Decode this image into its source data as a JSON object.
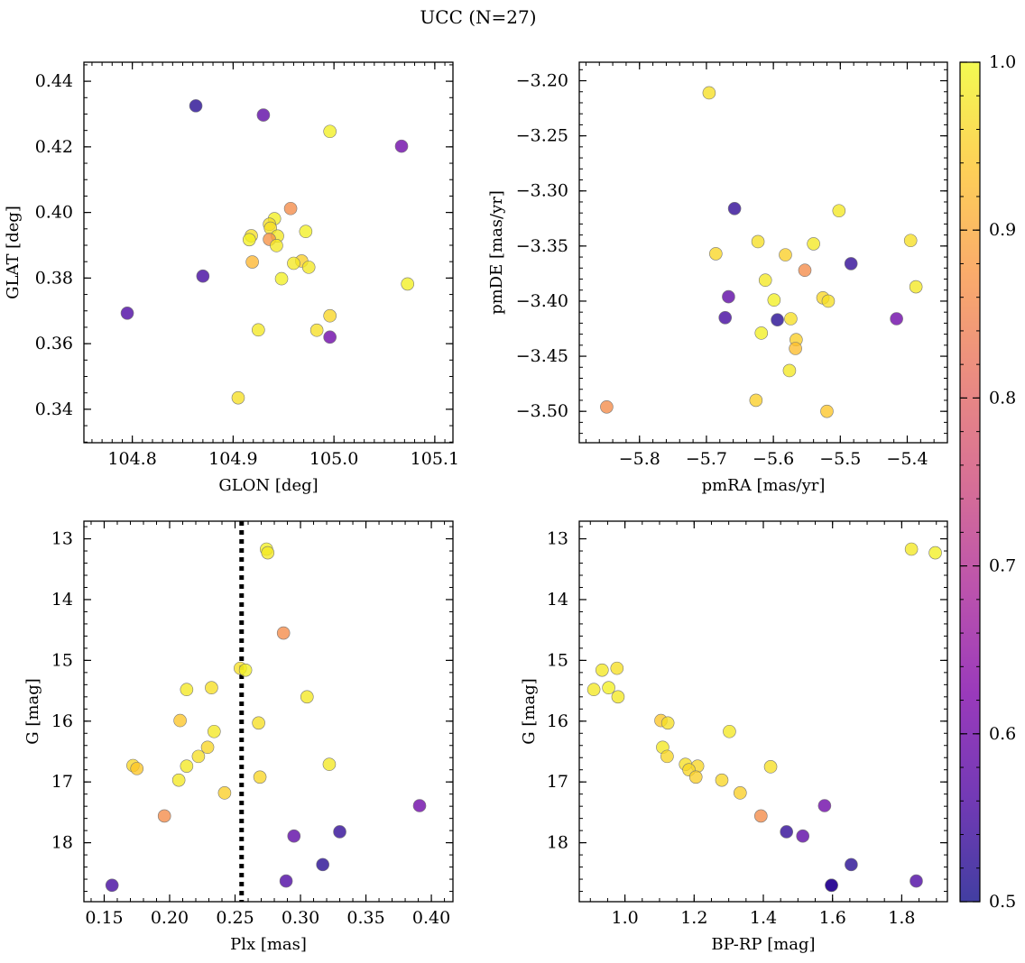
{
  "figure": {
    "title": "UCC (N=27)"
  },
  "colorbar": {
    "range": [
      0.5,
      1.0
    ],
    "ticks": [
      0.5,
      0.6,
      0.7,
      0.8,
      0.9,
      1.0
    ],
    "tick_labels": [
      "0.5",
      "0.6",
      "0.7",
      "0.8",
      "0.9",
      "1.0"
    ],
    "colormap": "plasma",
    "stops": [
      "#0d0887",
      "#4c02a1",
      "#7e03a8",
      "#a92395",
      "#cc4778",
      "#e56b5d",
      "#f89441",
      "#fdc328",
      "#f0f921"
    ],
    "marker_alpha": 0.78
  },
  "chart_data": [
    {
      "type": "scatter",
      "xlabel": "GLON [deg]",
      "ylabel": "GLAT [deg]",
      "xlim": [
        104.752,
        105.118
      ],
      "ylim": [
        0.3298,
        0.4458
      ],
      "xticks": [
        104.8,
        104.9,
        105.0,
        105.1
      ],
      "xtick_labels": [
        "104.8",
        "104.9",
        "105.0",
        "105.1"
      ],
      "yticks": [
        0.34,
        0.36,
        0.38,
        0.4,
        0.42,
        0.44
      ],
      "ytick_labels": [
        "0.34",
        "0.36",
        "0.38",
        "0.40",
        "0.42",
        "0.44"
      ],
      "x": [
        104.863,
        104.93,
        105.067,
        104.996,
        104.957,
        104.941,
        104.936,
        104.972,
        104.937,
        104.944,
        104.918,
        104.916,
        104.936,
        104.943,
        104.968,
        104.96,
        104.919,
        104.975,
        104.948,
        104.87,
        105.073,
        104.795,
        104.996,
        104.925,
        104.983,
        104.996,
        104.905
      ],
      "y": [
        0.4325,
        0.4297,
        0.4202,
        0.4247,
        0.4012,
        0.3981,
        0.3964,
        0.3942,
        0.3952,
        0.3928,
        0.3929,
        0.3917,
        0.3918,
        0.3899,
        0.3852,
        0.3845,
        0.3849,
        0.3833,
        0.3798,
        0.3806,
        0.3782,
        0.3693,
        0.3685,
        0.3642,
        0.3641,
        0.362,
        0.3435
      ],
      "c": [
        0.52,
        0.58,
        0.6,
        0.99,
        0.86,
        0.99,
        0.97,
        0.99,
        0.97,
        0.98,
        0.97,
        0.99,
        0.87,
        0.98,
        0.95,
        0.98,
        0.92,
        0.98,
        0.99,
        0.55,
        0.99,
        0.56,
        0.96,
        0.98,
        0.97,
        0.6,
        0.97
      ]
    },
    {
      "type": "scatter",
      "xlabel": "pmRA [mas/yr]",
      "ylabel": "pmDE [mas/yr]",
      "xlim": [
        -5.89,
        -5.34
      ],
      "ylim": [
        -3.5285,
        -3.1832
      ],
      "xticks": [
        -5.8,
        -5.7,
        -5.6,
        -5.5,
        -5.4
      ],
      "xtick_labels": [
        "−5.8",
        "−5.7",
        "−5.6",
        "−5.5",
        "−5.4"
      ],
      "yticks": [
        -3.2,
        -3.25,
        -3.3,
        -3.35,
        -3.4,
        -3.45,
        -3.5
      ],
      "ytick_labels": [
        "−3.20",
        "−3.25",
        "−3.30",
        "−3.35",
        "−3.40",
        "−3.45",
        "−3.50"
      ],
      "x": [
        -5.696,
        -5.658,
        -5.502,
        -5.686,
        -5.623,
        -5.582,
        -5.54,
        -5.395,
        -5.484,
        -5.553,
        -5.612,
        -5.667,
        -5.526,
        -5.518,
        -5.599,
        -5.387,
        -5.672,
        -5.594,
        -5.574,
        -5.416,
        -5.618,
        -5.566,
        -5.567,
        -5.576,
        -5.849,
        -5.626,
        -5.52
      ],
      "y": [
        -3.211,
        -3.316,
        -3.318,
        -3.357,
        -3.346,
        -3.358,
        -3.348,
        -3.345,
        -3.366,
        -3.372,
        -3.381,
        -3.396,
        -3.397,
        -3.4,
        -3.399,
        -3.387,
        -3.415,
        -3.417,
        -3.416,
        -3.416,
        -3.429,
        -3.435,
        -3.443,
        -3.463,
        -3.496,
        -3.49,
        -3.5
      ],
      "c": [
        0.97,
        0.53,
        0.98,
        0.96,
        0.97,
        0.95,
        0.98,
        0.97,
        0.53,
        0.86,
        0.98,
        0.58,
        0.96,
        0.97,
        0.99,
        0.98,
        0.55,
        0.52,
        0.97,
        0.6,
        0.99,
        0.95,
        0.93,
        0.98,
        0.86,
        0.95,
        0.94
      ]
    },
    {
      "type": "scatter",
      "xlabel": "Plx [mas]",
      "ylabel": "G [mag]",
      "xlim": [
        0.1345,
        0.4165
      ],
      "ylim": [
        18.97,
        12.71
      ],
      "y_inverted": true,
      "xticks": [
        0.15,
        0.2,
        0.25,
        0.3,
        0.35,
        0.4
      ],
      "xtick_labels": [
        "0.15",
        "0.20",
        "0.25",
        "0.30",
        "0.35",
        "0.40"
      ],
      "yticks": [
        13,
        14,
        15,
        16,
        17,
        18
      ],
      "ytick_labels": [
        "13",
        "14",
        "15",
        "16",
        "17",
        "18"
      ],
      "vline_x": 0.255,
      "x": [
        0.274,
        0.275,
        0.287,
        0.254,
        0.258,
        0.213,
        0.232,
        0.305,
        0.208,
        0.268,
        0.234,
        0.229,
        0.222,
        0.213,
        0.172,
        0.175,
        0.322,
        0.269,
        0.207,
        0.242,
        0.196,
        0.391,
        0.33,
        0.295,
        0.317,
        0.289,
        0.156
      ],
      "y": [
        13.17,
        13.23,
        14.55,
        15.13,
        15.16,
        15.48,
        15.45,
        15.6,
        15.99,
        16.03,
        16.17,
        16.43,
        16.58,
        16.74,
        16.73,
        16.78,
        16.71,
        16.92,
        16.97,
        17.18,
        17.56,
        17.39,
        17.82,
        17.89,
        18.36,
        18.63,
        18.7
      ],
      "c": [
        0.99,
        0.98,
        0.86,
        0.97,
        0.99,
        0.98,
        0.97,
        0.98,
        0.94,
        0.97,
        0.98,
        0.96,
        0.97,
        0.98,
        0.96,
        0.94,
        0.98,
        0.96,
        0.98,
        0.95,
        0.86,
        0.6,
        0.53,
        0.58,
        0.52,
        0.56,
        0.55
      ]
    },
    {
      "type": "scatter",
      "xlabel": "BP-RP [mag]",
      "ylabel": "G [mag]",
      "xlim": [
        0.868,
        1.932
      ],
      "ylim": [
        18.97,
        12.71
      ],
      "y_inverted": true,
      "xticks": [
        1.0,
        1.2,
        1.4,
        1.6,
        1.8
      ],
      "xtick_labels": [
        "1.0",
        "1.2",
        "1.4",
        "1.6",
        "1.8"
      ],
      "yticks": [
        13,
        14,
        15,
        16,
        17,
        18
      ],
      "ytick_labels": [
        "13",
        "14",
        "15",
        "16",
        "17",
        "18"
      ],
      "x": [
        1.828,
        1.897,
        0.934,
        0.977,
        0.91,
        0.953,
        0.98,
        1.104,
        1.124,
        1.302,
        1.109,
        1.122,
        1.175,
        1.21,
        1.185,
        1.421,
        1.205,
        1.28,
        1.333,
        1.393,
        1.577,
        1.467,
        1.514,
        1.654,
        1.597,
        1.842,
        1.597
      ],
      "y": [
        13.17,
        13.23,
        15.16,
        15.13,
        15.48,
        15.45,
        15.6,
        15.99,
        16.03,
        16.17,
        16.43,
        16.58,
        16.71,
        16.74,
        16.8,
        16.75,
        16.92,
        16.97,
        17.18,
        17.56,
        17.39,
        17.82,
        17.89,
        18.36,
        18.7,
        18.63,
        18.7
      ],
      "c": [
        0.98,
        0.99,
        0.98,
        0.97,
        0.98,
        0.99,
        0.98,
        0.94,
        0.97,
        0.98,
        0.98,
        0.96,
        0.97,
        0.96,
        0.96,
        0.97,
        0.95,
        0.96,
        0.95,
        0.86,
        0.6,
        0.53,
        0.58,
        0.52,
        0.55,
        0.56,
        0.52
      ]
    }
  ]
}
